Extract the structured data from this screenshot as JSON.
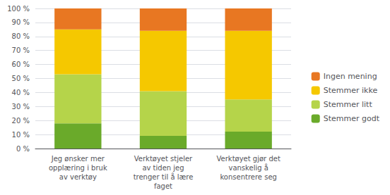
{
  "chart_data": {
    "type": "bar",
    "stacked": true,
    "grid": true,
    "legend": "right",
    "categories": [
      "Jeg ønsker mer\nopplæring i bruk\nav verktøy",
      "Verktøyet stjeler\nav tiden jeg\ntrenger til å lære\nfaget",
      "Verktøyet gjør det\nvanskelig å\nkonsentrere seg"
    ],
    "series": [
      {
        "name": "Stemmer godt",
        "color": "#6aaa2a",
        "values": [
          18,
          9,
          12
        ]
      },
      {
        "name": "Stemmer litt",
        "color": "#b5d44a",
        "values": [
          35,
          32,
          23
        ]
      },
      {
        "name": "Stemmer ikke",
        "color": "#f5c800",
        "values": [
          32,
          43,
          49
        ]
      },
      {
        "name": "Ingen mening",
        "color": "#e87722",
        "values": [
          15,
          16,
          16
        ]
      }
    ],
    "ylim": [
      0,
      100
    ],
    "yticks": [
      {
        "value": 0,
        "label": "0 %"
      },
      {
        "value": 10,
        "label": "10 %"
      },
      {
        "value": 20,
        "label": "20 %"
      },
      {
        "value": 30,
        "label": "30 %"
      },
      {
        "value": 40,
        "label": "40 %"
      },
      {
        "value": 50,
        "label": "50 %"
      },
      {
        "value": 60,
        "label": "60 %"
      },
      {
        "value": 70,
        "label": "70 %"
      },
      {
        "value": 80,
        "label": "80 %"
      },
      {
        "value": 90,
        "label": "90 %"
      },
      {
        "value": 100,
        "label": "100 %"
      }
    ]
  }
}
